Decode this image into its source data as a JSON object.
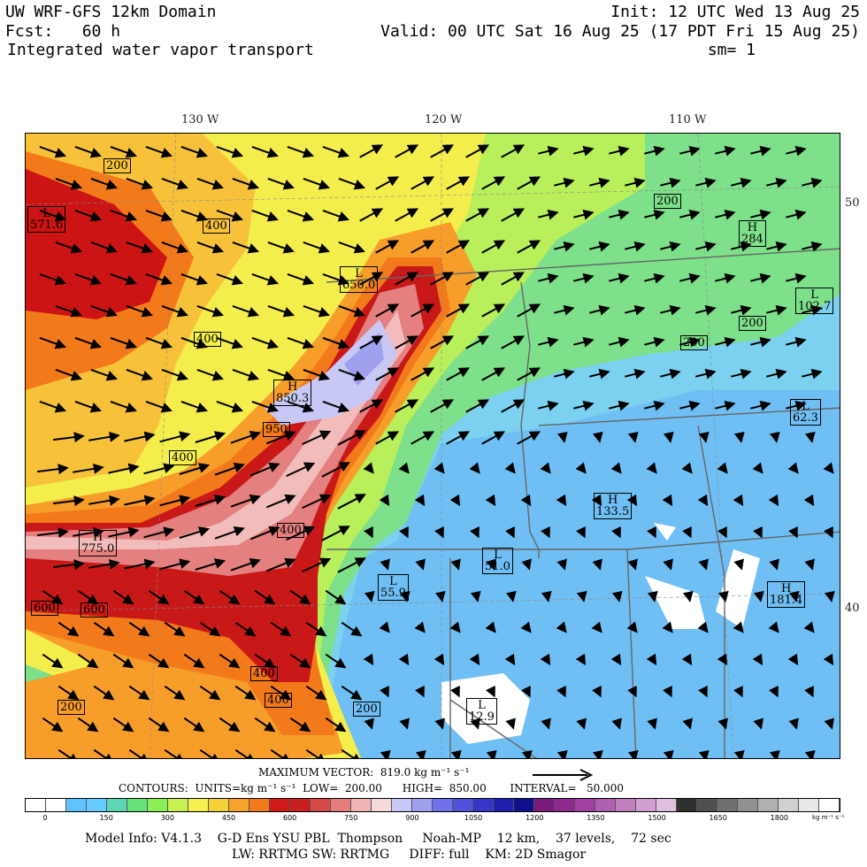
{
  "header": {
    "line1_left": "UW WRF-GFS 12km Domain",
    "line2_left": "Fcst:   60 h",
    "line3_left": "Integrated water vapor transport",
    "line1_right": "Init: 12 UTC Wed 13 Aug 25",
    "line2_right": "Valid: 00 UTC Sat 16 Aug 25 (17 PDT Fri 15 Aug 25)",
    "line3_right": "sm= 1"
  },
  "map": {
    "lon_labels": [
      "130 W",
      "120 W",
      "110 W"
    ],
    "lat_labels": [
      "50",
      "40"
    ],
    "markers": [
      {
        "text": "200"
      },
      {
        "text": "L\n571.6"
      },
      {
        "text": "400"
      },
      {
        "text": "400"
      },
      {
        "text": "L\n650.0"
      },
      {
        "text": "H\n850.3"
      },
      {
        "text": "950"
      },
      {
        "text": "400"
      },
      {
        "text": "H\n775.0"
      },
      {
        "text": "600"
      },
      {
        "text": "600"
      },
      {
        "text": "400"
      },
      {
        "text": "400"
      },
      {
        "text": "400"
      },
      {
        "text": "200"
      },
      {
        "text": "200"
      },
      {
        "text": "200"
      },
      {
        "text": "H\n284"
      },
      {
        "text": "200"
      },
      {
        "text": "200"
      },
      {
        "text": "L\n102.7"
      },
      {
        "text": "L\n62.3"
      },
      {
        "text": "H\n133.5"
      },
      {
        "text": "L\n51.0"
      },
      {
        "text": "L\n55.9"
      },
      {
        "text": "H\n181.4"
      },
      {
        "text": "L\n12.9"
      }
    ]
  },
  "footer": {
    "max_vector": "MAXIMUM VECTOR:  819.0 kg m⁻¹ s⁻¹",
    "contours_line": "CONTOURS:  UNITS=kg m⁻¹ s⁻¹  LOW=  200.00      HIGH=  850.00       INTERVAL=   50.000",
    "colorbar_ticks": [
      "0",
      "150",
      "300",
      "450",
      "600",
      "750",
      "900",
      "1050",
      "1200",
      "1350",
      "1500",
      "1650",
      "1800"
    ],
    "colorbar_units": "kg m⁻¹ s⁻¹",
    "model_info_1": "Model Info: V4.1.3    G-D Ens YSU PBL  Thompson     Noah-MP    12 km,    37 levels,    72 sec",
    "model_info_2": "LW: RRTMG SW: RRTMG     DIFF: full    KM: 2D Smagor"
  },
  "colorbar_colors": [
    "#ffffff",
    "#ffffff",
    "#5fc3ff",
    "#66ccff",
    "#5dd6b4",
    "#66e27a",
    "#8aee55",
    "#c8f050",
    "#f4f050",
    "#f6d23a",
    "#f7a22a",
    "#f27a1a",
    "#d21a1a",
    "#c82020",
    "#d74a4a",
    "#e57d7d",
    "#f2b5b5",
    "#f6dada",
    "#c8c8f8",
    "#a0a0f0",
    "#7070e8",
    "#5050d8",
    "#3535c8",
    "#2020b0",
    "#10108a",
    "#7a1a7a",
    "#8e2a8e",
    "#a040a0",
    "#b060b0",
    "#c080c0",
    "#d0a0d0",
    "#e0c0e0",
    "#303030",
    "#505050",
    "#707070",
    "#909090",
    "#b0b0b0",
    "#d0d0d0",
    "#e8e8e8",
    "#ffffff"
  ]
}
